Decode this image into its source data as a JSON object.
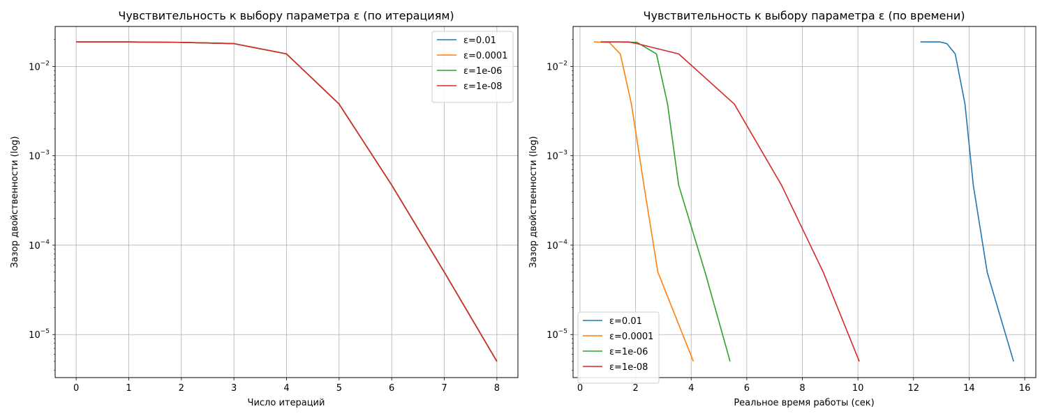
{
  "chart_data": [
    {
      "type": "line",
      "title": "Чувствительность к выбору параметра ε (по итерациям)",
      "xlabel": "Число итераций",
      "ylabel": "Зазор двойственности (log)",
      "xscale": "linear",
      "yscale": "log",
      "xlim": [
        -0.4,
        8.4
      ],
      "ylim": [
        3.3e-06,
        0.028
      ],
      "xticks": [
        0,
        1,
        2,
        3,
        4,
        5,
        6,
        7,
        8
      ],
      "yticks": [
        1e-05,
        0.0001,
        0.001,
        0.01
      ],
      "ytick_labels": [
        {
          "base": "10",
          "exp": "−5"
        },
        {
          "base": "10",
          "exp": "−4"
        },
        {
          "base": "10",
          "exp": "−3"
        },
        {
          "base": "10",
          "exp": "−2"
        }
      ],
      "grid": true,
      "legend": "top-right",
      "series": [
        {
          "name": "ε=0.01",
          "color": "#1f77b4",
          "x": [
            0,
            1,
            2,
            3,
            4,
            5,
            6,
            7,
            8
          ],
          "y": [
            0.0188,
            0.0188,
            0.0186,
            0.018,
            0.0138,
            0.0038,
            0.00047,
            5e-05,
            5e-06
          ]
        },
        {
          "name": "ε=0.0001",
          "color": "#ff7f0e",
          "x": [
            0,
            1,
            2,
            3,
            4,
            5,
            6,
            7,
            8
          ],
          "y": [
            0.0188,
            0.0188,
            0.0186,
            0.018,
            0.0138,
            0.0038,
            0.00047,
            5e-05,
            5e-06
          ]
        },
        {
          "name": "ε=1e-06",
          "color": "#2ca02c",
          "x": [
            0,
            1,
            2,
            3,
            4,
            5,
            6,
            7,
            8
          ],
          "y": [
            0.0188,
            0.0188,
            0.0186,
            0.018,
            0.0138,
            0.0038,
            0.00047,
            5e-05,
            5e-06
          ]
        },
        {
          "name": "ε=1e-08",
          "color": "#d62728",
          "x": [
            0,
            1,
            2,
            3,
            4,
            5,
            6,
            7,
            8
          ],
          "y": [
            0.0188,
            0.0188,
            0.0186,
            0.018,
            0.0138,
            0.0038,
            0.00047,
            5e-05,
            5e-06
          ]
        }
      ]
    },
    {
      "type": "line",
      "title": "Чувствительность к выбору параметра ε (по времени)",
      "xlabel": "Реальное время работы (сек)",
      "ylabel": "Зазор двойственности (log)",
      "xscale": "linear",
      "yscale": "log",
      "xlim": [
        -0.25,
        16.4
      ],
      "ylim": [
        3.3e-06,
        0.028
      ],
      "xticks": [
        0,
        2,
        4,
        6,
        8,
        10,
        12,
        14,
        16
      ],
      "yticks": [
        1e-05,
        0.0001,
        0.001,
        0.01
      ],
      "ytick_labels": [
        {
          "base": "10",
          "exp": "−5"
        },
        {
          "base": "10",
          "exp": "−4"
        },
        {
          "base": "10",
          "exp": "−3"
        },
        {
          "base": "10",
          "exp": "−2"
        }
      ],
      "grid": true,
      "legend": "bottom-left",
      "series": [
        {
          "name": "ε=0.01",
          "color": "#1f77b4",
          "x": [
            12.25,
            12.95,
            13.2,
            13.5,
            13.85,
            14.15,
            14.65,
            15.6
          ],
          "y": [
            0.0188,
            0.0188,
            0.018,
            0.0138,
            0.0038,
            0.00047,
            5e-05,
            5e-06
          ]
        },
        {
          "name": "ε=0.0001",
          "color": "#ff7f0e",
          "x": [
            0.5,
            1.05,
            1.45,
            1.85,
            2.3,
            2.8,
            4.08
          ],
          "y": [
            0.0188,
            0.0186,
            0.0138,
            0.0038,
            0.00047,
            5e-05,
            5e-06
          ]
        },
        {
          "name": "ε=1e-06",
          "color": "#2ca02c",
          "x": [
            0.75,
            1.3,
            2.05,
            2.75,
            3.15,
            3.55,
            4.5,
            5.4
          ],
          "y": [
            0.0188,
            0.0188,
            0.0186,
            0.0138,
            0.0038,
            0.00047,
            5e-05,
            5e-06
          ]
        },
        {
          "name": "ε=1e-08",
          "color": "#d62728",
          "x": [
            0.75,
            1.75,
            2.05,
            3.55,
            5.55,
            7.25,
            8.75,
            10.05
          ],
          "y": [
            0.0188,
            0.0188,
            0.018,
            0.0138,
            0.0038,
            0.00047,
            5e-05,
            5e-06
          ]
        }
      ]
    }
  ]
}
